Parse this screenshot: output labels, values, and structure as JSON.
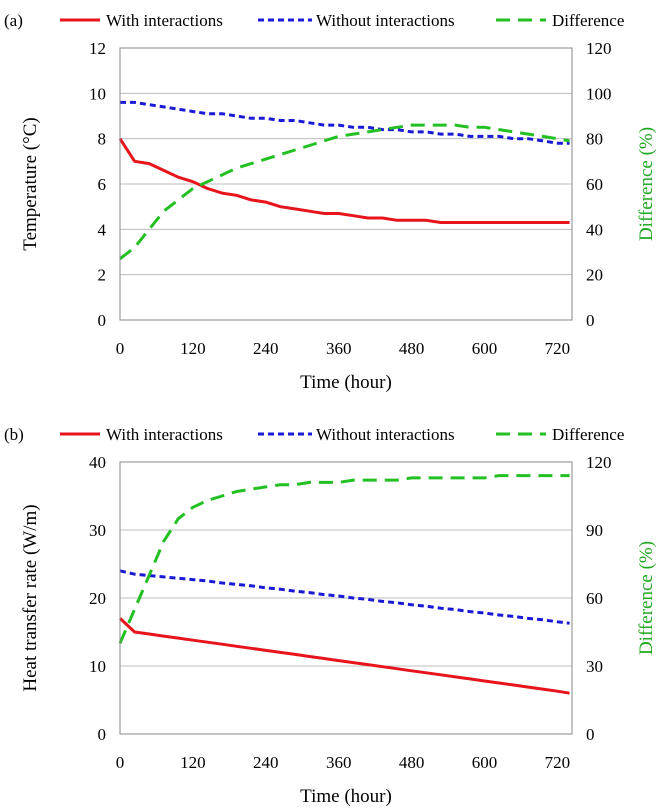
{
  "chart_data": [
    {
      "type": "line",
      "panel_label": "(a)",
      "xlabel": "Time (hour)",
      "ylabel": "Temperature (°C)",
      "ylabel_right": "Difference (%)",
      "xlim": [
        0,
        744
      ],
      "ylim": [
        0,
        12
      ],
      "ylim_right": [
        0,
        120
      ],
      "xticks": [
        "0",
        "120",
        "240",
        "360",
        "480",
        "600",
        "720"
      ],
      "yticks_left": [
        "0",
        "2",
        "4",
        "6",
        "8",
        "10",
        "12"
      ],
      "yticks_right": [
        "0",
        "20",
        "40",
        "60",
        "80",
        "100",
        "120"
      ],
      "grid": "horizontal",
      "legend_position": "top",
      "series": [
        {
          "name": "With interactions",
          "axis": "left",
          "color": "#e8141c",
          "style": "solid",
          "x": [
            0,
            24,
            48,
            72,
            96,
            120,
            144,
            168,
            192,
            216,
            240,
            264,
            288,
            312,
            336,
            360,
            384,
            408,
            432,
            456,
            480,
            504,
            528,
            552,
            576,
            600,
            624,
            648,
            672,
            696,
            720,
            740
          ],
          "y": [
            8.0,
            7.0,
            6.9,
            6.6,
            6.3,
            6.1,
            5.8,
            5.6,
            5.5,
            5.3,
            5.2,
            5.0,
            4.9,
            4.8,
            4.7,
            4.7,
            4.6,
            4.5,
            4.5,
            4.4,
            4.4,
            4.4,
            4.3,
            4.3,
            4.3,
            4.3,
            4.3,
            4.3,
            4.3,
            4.3,
            4.3,
            4.3
          ]
        },
        {
          "name": "Without interactions",
          "axis": "left",
          "color": "#1a1ad6",
          "style": "dash",
          "x": [
            0,
            24,
            48,
            72,
            96,
            120,
            144,
            168,
            192,
            216,
            240,
            264,
            288,
            312,
            336,
            360,
            384,
            408,
            432,
            456,
            480,
            504,
            528,
            552,
            576,
            600,
            624,
            648,
            672,
            696,
            720,
            740
          ],
          "y": [
            9.6,
            9.6,
            9.5,
            9.4,
            9.3,
            9.2,
            9.1,
            9.1,
            9.0,
            8.9,
            8.9,
            8.8,
            8.8,
            8.7,
            8.6,
            8.6,
            8.5,
            8.5,
            8.4,
            8.4,
            8.3,
            8.3,
            8.2,
            8.2,
            8.1,
            8.1,
            8.1,
            8.0,
            8.0,
            7.9,
            7.8,
            7.8
          ]
        },
        {
          "name": "Difference",
          "axis": "right",
          "color": "#22c022",
          "style": "longdash",
          "x": [
            0,
            24,
            48,
            72,
            96,
            120,
            144,
            168,
            192,
            216,
            240,
            264,
            288,
            312,
            336,
            360,
            384,
            408,
            432,
            456,
            480,
            504,
            528,
            552,
            576,
            600,
            624,
            648,
            672,
            696,
            720,
            740
          ],
          "y": [
            27,
            32,
            40,
            48,
            53,
            58,
            61,
            64,
            67,
            69,
            71,
            73,
            75,
            77,
            79,
            81,
            82,
            83,
            84,
            85,
            86,
            86,
            86,
            86,
            85,
            85,
            84,
            83,
            82,
            81,
            80,
            79
          ]
        }
      ]
    },
    {
      "type": "line",
      "panel_label": "(b)",
      "xlabel": "Time (hour)",
      "ylabel": "Heat transfer rate (W/m)",
      "ylabel_right": "Difference (%)",
      "xlim": [
        0,
        744
      ],
      "ylim": [
        0,
        40
      ],
      "ylim_right": [
        0,
        120
      ],
      "xticks": [
        "0",
        "120",
        "240",
        "360",
        "480",
        "600",
        "720"
      ],
      "yticks_left": [
        "0",
        "10",
        "20",
        "30",
        "40"
      ],
      "yticks_right": [
        "0",
        "30",
        "60",
        "90",
        "120"
      ],
      "grid": "horizontal",
      "legend_position": "top",
      "series": [
        {
          "name": "With interactions",
          "axis": "left",
          "color": "#e8141c",
          "style": "solid",
          "x": [
            0,
            24,
            48,
            72,
            96,
            120,
            144,
            168,
            192,
            216,
            240,
            264,
            288,
            312,
            336,
            360,
            384,
            408,
            432,
            456,
            480,
            504,
            528,
            552,
            576,
            600,
            624,
            648,
            672,
            696,
            720,
            740
          ],
          "y": [
            17,
            15,
            14.7,
            14.4,
            14.1,
            13.8,
            13.5,
            13.2,
            12.9,
            12.6,
            12.3,
            12.0,
            11.7,
            11.4,
            11.1,
            10.8,
            10.5,
            10.2,
            9.9,
            9.6,
            9.3,
            9.0,
            8.7,
            8.4,
            8.1,
            7.8,
            7.5,
            7.2,
            6.9,
            6.6,
            6.3,
            6.0
          ]
        },
        {
          "name": "Without interactions",
          "axis": "left",
          "color": "#1a1ad6",
          "style": "dash",
          "x": [
            0,
            24,
            48,
            72,
            96,
            120,
            144,
            168,
            192,
            216,
            240,
            264,
            288,
            312,
            336,
            360,
            384,
            408,
            432,
            456,
            480,
            504,
            528,
            552,
            576,
            600,
            624,
            648,
            672,
            696,
            720,
            740
          ],
          "y": [
            24,
            23.5,
            23.3,
            23.1,
            22.9,
            22.7,
            22.5,
            22.2,
            22.0,
            21.8,
            21.5,
            21.3,
            21.0,
            20.8,
            20.5,
            20.3,
            20.0,
            19.8,
            19.5,
            19.3,
            19.0,
            18.8,
            18.5,
            18.3,
            18.0,
            17.8,
            17.5,
            17.3,
            17.0,
            16.8,
            16.5,
            16.3
          ]
        },
        {
          "name": "Difference",
          "axis": "right",
          "color": "#22c022",
          "style": "longdash",
          "x": [
            0,
            24,
            48,
            72,
            96,
            120,
            144,
            168,
            192,
            216,
            240,
            264,
            288,
            312,
            336,
            360,
            384,
            408,
            432,
            456,
            480,
            504,
            528,
            552,
            576,
            600,
            624,
            648,
            672,
            696,
            720,
            740
          ],
          "y": [
            40,
            55,
            70,
            85,
            95,
            100,
            103,
            105,
            107,
            108,
            109,
            110,
            110,
            111,
            111,
            111,
            112,
            112,
            112,
            112,
            113,
            113,
            113,
            113,
            113,
            113,
            114,
            114,
            114,
            114,
            114,
            114
          ]
        }
      ]
    }
  ]
}
